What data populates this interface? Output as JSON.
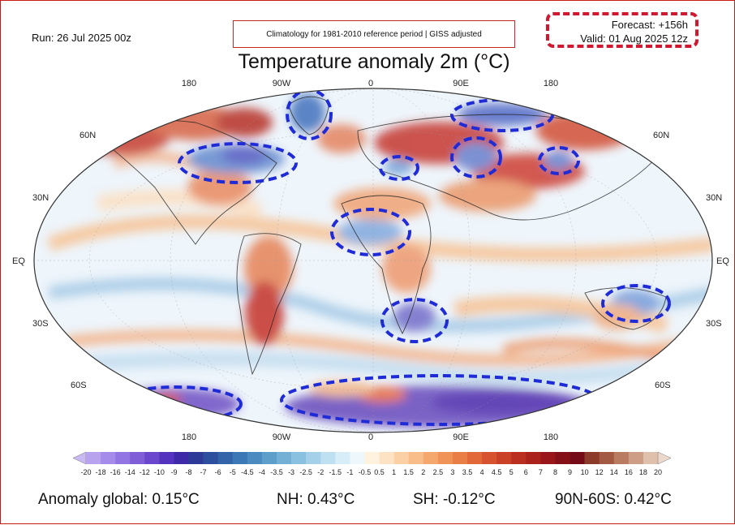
{
  "header": {
    "run": "Run: 26 Jul 2025 00z",
    "climatology": "Climatology for 1981-2010 reference period | GISS adjusted",
    "forecast": "Forecast: +156h",
    "valid": "Valid: 01 Aug 2025 12z",
    "title": "Temperature anomaly 2m (°C)"
  },
  "map": {
    "longitude_labels": [
      "180",
      "90W",
      "0",
      "90E",
      "180"
    ],
    "latitude_labels": [
      "60N",
      "30N",
      "EQ",
      "30S",
      "60S"
    ]
  },
  "colorbar": {
    "ticks": [
      "-20",
      "-18",
      "-16",
      "-14",
      "-12",
      "-10",
      "-9",
      "-8",
      "-7",
      "-6",
      "-5",
      "-4.5",
      "-4",
      "-3.5",
      "-3",
      "-2.5",
      "-2",
      "-1.5",
      "-1",
      "-0.5",
      "0.5",
      "1",
      "1.5",
      "2",
      "2.5",
      "3",
      "3.5",
      "4",
      "4.5",
      "5",
      "6",
      "7",
      "8",
      "9",
      "10",
      "12",
      "14",
      "16",
      "18",
      "20"
    ],
    "colors": [
      "#c9b9f2",
      "#b8a3ee",
      "#a58cea",
      "#9274e2",
      "#7f5ed8",
      "#6a47cc",
      "#5433be",
      "#3e2aa8",
      "#2e3a98",
      "#2c4f9e",
      "#3364aa",
      "#3c78b6",
      "#4b8bc0",
      "#5e9ecb",
      "#74b0d6",
      "#8bc1e0",
      "#a4d1e9",
      "#bee0f1",
      "#d7edf7",
      "#eef7fb",
      "#fff3e0",
      "#fde3c4",
      "#fbd0a5",
      "#f8bd88",
      "#f5a86e",
      "#f09358",
      "#ea7e47",
      "#e2683a",
      "#d7532f",
      "#ca4027",
      "#bb2f20",
      "#ab221c",
      "#99161a",
      "#861018",
      "#740b16",
      "#8c3a2a",
      "#a35a44",
      "#b97b62",
      "#cd9d85",
      "#dfc0ac",
      "#edd9cb"
    ]
  },
  "stats": {
    "global": "Anomaly global: 0.15°C",
    "nh": "NH: 0.43°C",
    "sh": "SH: -0.12°C",
    "band": "90N-60S: 0.42°C"
  }
}
